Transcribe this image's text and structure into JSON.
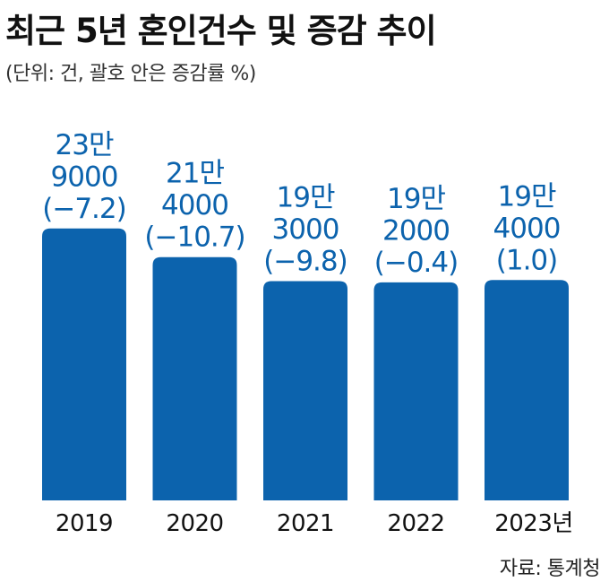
{
  "title": "최근 5년 혼인건수 및 증감 추이",
  "subtitle": "(단위: 건, 괄호 안은 증감률 %)",
  "source": "자료: 통계청",
  "colors": {
    "bar": "#0c63ad",
    "label": "#0c63ad",
    "axis_text": "#111111"
  },
  "chart_data": {
    "type": "bar",
    "categories": [
      "2019",
      "2020",
      "2021",
      "2022",
      "2023년"
    ],
    "values": [
      239000,
      214000,
      193000,
      192000,
      194000
    ],
    "change_pct": [
      -7.2,
      -10.7,
      -9.8,
      -0.4,
      1.0
    ],
    "value_labels": [
      [
        "23만",
        "9000",
        "(−7.2)"
      ],
      [
        "21만",
        "4000",
        "(−10.7)"
      ],
      [
        "19만",
        "3000",
        "(−9.8)"
      ],
      [
        "19만",
        "2000",
        "(−0.4)"
      ],
      [
        "19만",
        "4000",
        "(1.0)"
      ]
    ],
    "title": "최근 5년 혼인건수 및 증감 추이",
    "xlabel": "",
    "ylabel": "",
    "grid": false,
    "legend": "none"
  }
}
